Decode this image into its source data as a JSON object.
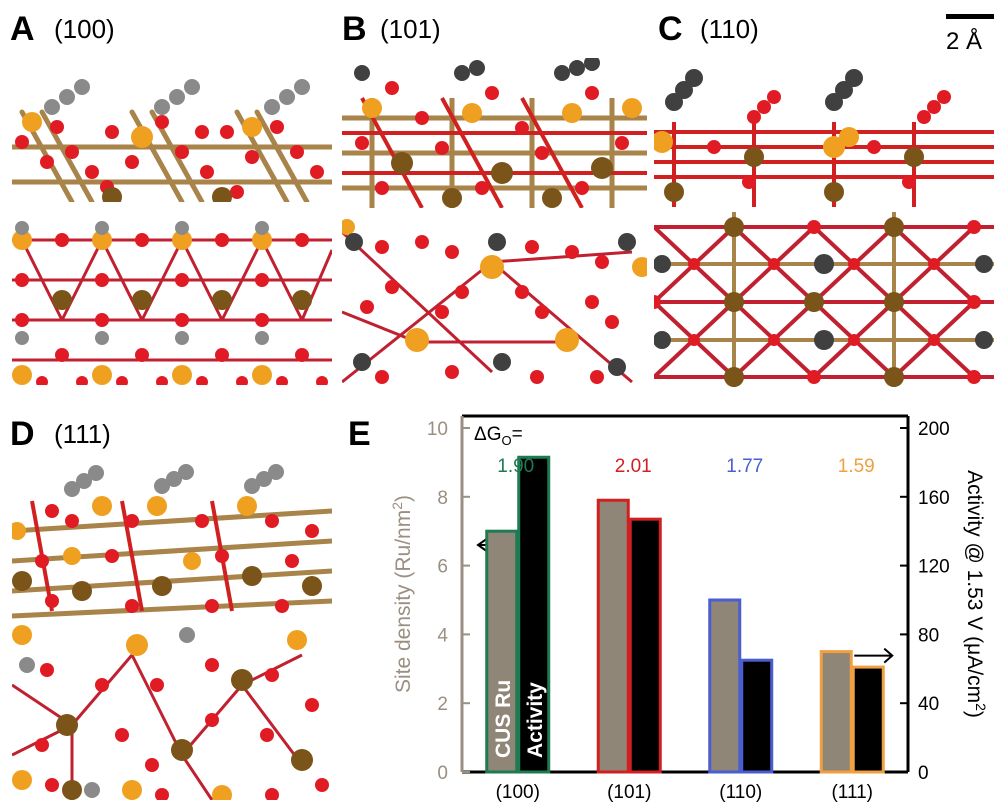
{
  "panels": {
    "A": {
      "letter": "A",
      "facet": "(100)"
    },
    "B": {
      "letter": "B",
      "facet": "(101)"
    },
    "C": {
      "letter": "C",
      "facet": "(110)"
    },
    "D": {
      "letter": "D",
      "facet": "(111)"
    },
    "E": {
      "letter": "E"
    }
  },
  "scale_bar": {
    "label": "2 Å"
  },
  "colors": {
    "oxygen": "#e01b24",
    "ru_cus": "#f0a020",
    "ru_bridge": "#7a5418",
    "bond": "#a8834a",
    "adsorbate": "#707070",
    "bar_fill": "#8f8678",
    "green": "#1e7a50",
    "red": "#d02020",
    "blue": "#4a5ed0",
    "orange": "#f0a040",
    "gray_axis": "#9a8f80"
  },
  "chart_data": {
    "type": "bar",
    "title": "",
    "categories": [
      "(100)",
      "(101)",
      "(110)",
      "(111)"
    ],
    "series": [
      {
        "name": "CUS Ru",
        "axis": "left",
        "values": [
          7.0,
          7.9,
          5.0,
          3.5
        ]
      },
      {
        "name": "Activity",
        "axis": "right",
        "values": [
          183,
          147,
          65,
          61
        ]
      }
    ],
    "bar_edge_colors": [
      "#1e7a50",
      "#d02020",
      "#4a5ed0",
      "#f0a040"
    ],
    "dG_label": "ΔG",
    "dG_subscript": "O",
    "dG_suffix": "=",
    "dG_values": [
      "1.90",
      "2.01",
      "1.77",
      "1.59"
    ],
    "ylabel_left_main": "Site density (Ru/nm",
    "ylabel_left_sup": "2",
    "ylabel_left_end": ")",
    "ylabel_right_main": "Activity @ 1.53 V (μA/cm",
    "ylabel_right_sup": "2",
    "ylabel_right_end": ")",
    "ylim_left": [
      0,
      10
    ],
    "ylim_right": [
      0,
      200
    ],
    "yticks_left": [
      "0",
      "2",
      "4",
      "6",
      "8",
      "10"
    ],
    "yticks_right": [
      "0",
      "40",
      "80",
      "120",
      "160",
      "200"
    ]
  }
}
